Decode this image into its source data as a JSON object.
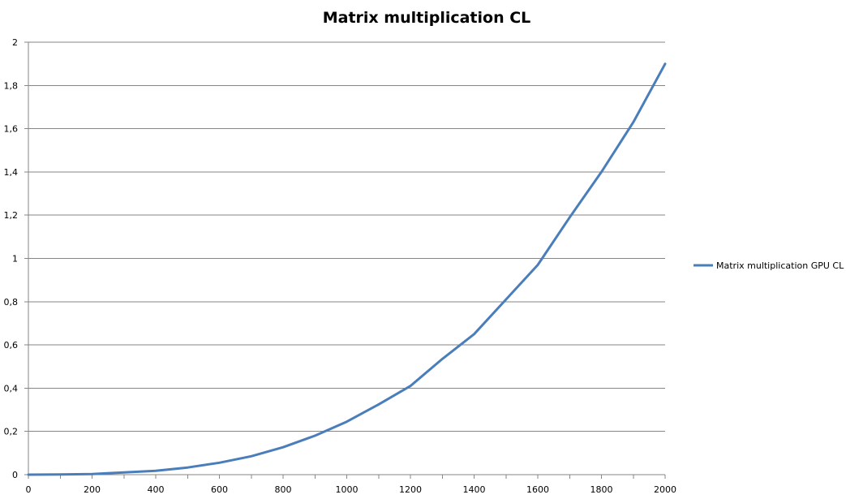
{
  "chart_data": {
    "type": "line",
    "title": "Matrix multiplication CL",
    "xlabel": "",
    "ylabel": "",
    "x": [
      0,
      100,
      200,
      300,
      400,
      500,
      600,
      700,
      800,
      900,
      1000,
      1100,
      1200,
      1300,
      1400,
      1500,
      1600,
      1700,
      1800,
      1900,
      2000
    ],
    "series": [
      {
        "name": "Matrix multiplication GPU CL",
        "color": "#4a7ebb",
        "values": [
          0,
          0.001,
          0.003,
          0.01,
          0.018,
          0.033,
          0.055,
          0.085,
          0.127,
          0.18,
          0.245,
          0.325,
          0.41,
          0.535,
          0.65,
          0.81,
          0.97,
          1.19,
          1.4,
          1.63,
          1.9
        ]
      }
    ],
    "xlim": [
      0,
      2000
    ],
    "ylim": [
      0,
      2
    ],
    "x_ticks": [
      "0",
      "200",
      "400",
      "600",
      "800",
      "1000",
      "1200",
      "1400",
      "1600",
      "1800",
      "2000"
    ],
    "x_tick_values": [
      0,
      200,
      400,
      600,
      800,
      1000,
      1200,
      1400,
      1600,
      1800,
      2000
    ],
    "y_ticks": [
      "0",
      "0,2",
      "0,4",
      "0,6",
      "0,8",
      "1",
      "1,2",
      "1,4",
      "1,6",
      "1,8",
      "2"
    ],
    "y_tick_values": [
      0,
      0.2,
      0.4,
      0.6,
      0.8,
      1.0,
      1.2,
      1.4,
      1.6,
      1.8,
      2.0
    ],
    "grid": true,
    "legend_position": "right"
  }
}
